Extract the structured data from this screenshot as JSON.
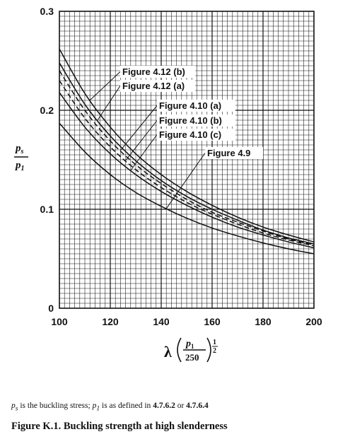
{
  "chart_data": {
    "type": "line",
    "title": "",
    "xlabel_symbol": "λ",
    "xlabel_numerator": "p",
    "xlabel_numerator_sub": "1",
    "xlabel_denominator": "250",
    "xlabel_exponent_num": "1",
    "xlabel_exponent_den": "2",
    "ylabel_numerator": "p",
    "ylabel_numerator_sub": "s",
    "ylabel_denominator": "p",
    "ylabel_denominator_sub": "1",
    "xlim": [
      100,
      200
    ],
    "ylim": [
      0,
      0.3
    ],
    "x_ticks": [
      {
        "value": 100,
        "label": "100"
      },
      {
        "value": 120,
        "label": "120"
      },
      {
        "value": 140,
        "label": "140"
      },
      {
        "value": 160,
        "label": "160"
      },
      {
        "value": 180,
        "label": "180"
      },
      {
        "value": 200,
        "label": "200"
      }
    ],
    "y_ticks": [
      {
        "value": 0,
        "label": "0"
      },
      {
        "value": 0.1,
        "label": "0.1"
      },
      {
        "value": 0.2,
        "label": "0.2"
      },
      {
        "value": 0.3,
        "label": "0.3"
      }
    ],
    "grid": true,
    "x": [
      100,
      110,
      120,
      130,
      140,
      150,
      160,
      170,
      180,
      190,
      200
    ],
    "series": [
      {
        "name": "Figure 4.12(b)",
        "dash": "solid",
        "values": [
          0.262,
          0.217,
          0.183,
          0.156,
          0.135,
          0.118,
          0.104,
          0.092,
          0.082,
          0.074,
          0.067
        ]
      },
      {
        "name": "Figure 4.12(a)",
        "dash": "solid",
        "values": [
          0.248,
          0.206,
          0.174,
          0.149,
          0.129,
          0.113,
          0.1,
          0.089,
          0.079,
          0.071,
          0.065
        ]
      },
      {
        "name": "Figure 4.10(a)",
        "dash": "dashed",
        "values": [
          0.24,
          0.2,
          0.169,
          0.145,
          0.126,
          0.11,
          0.097,
          0.087,
          0.078,
          0.07,
          0.064
        ]
      },
      {
        "name": "Figure 4.10(b)",
        "dash": "dashed",
        "values": [
          0.23,
          0.192,
          0.163,
          0.14,
          0.122,
          0.107,
          0.095,
          0.085,
          0.076,
          0.069,
          0.063
        ]
      },
      {
        "name": "Figure 4.10(c)",
        "dash": "solid",
        "values": [
          0.218,
          0.183,
          0.156,
          0.135,
          0.118,
          0.104,
          0.092,
          0.082,
          0.074,
          0.067,
          0.061
        ]
      },
      {
        "name": "Figure 4.9",
        "dash": "solid",
        "values": [
          0.187,
          0.158,
          0.135,
          0.117,
          0.103,
          0.091,
          0.081,
          0.073,
          0.066,
          0.06,
          0.055
        ]
      }
    ],
    "annotations": [
      {
        "text": "Figure 4.12 (b)",
        "series": "Figure 4.12(b)"
      },
      {
        "text": "Figure 4.12 (a)",
        "series": "Figure 4.12(a)"
      },
      {
        "text": "Figure 4.10 (a)",
        "series": "Figure 4.10(a)"
      },
      {
        "text": "Figure 4.10 (b)",
        "series": "Figure 4.10(b)"
      },
      {
        "text": "Figure 4.10 (c)",
        "series": "Figure 4.10(c)"
      },
      {
        "text": "Figure 4.9",
        "series": "Figure 4.9"
      }
    ]
  },
  "footnote": {
    "sym_ps": "p",
    "sym_ps_sub": "s",
    "text_1": " is the buckling stress; ",
    "sym_p1": "p",
    "sym_p1_sub": "1",
    "text_2": " is as defined in ",
    "ref_1": "4.7.6.2",
    "text_3": " or ",
    "ref_2": "4.7.6.4"
  },
  "caption": "Figure K.1. Buckling strength at high slenderness"
}
